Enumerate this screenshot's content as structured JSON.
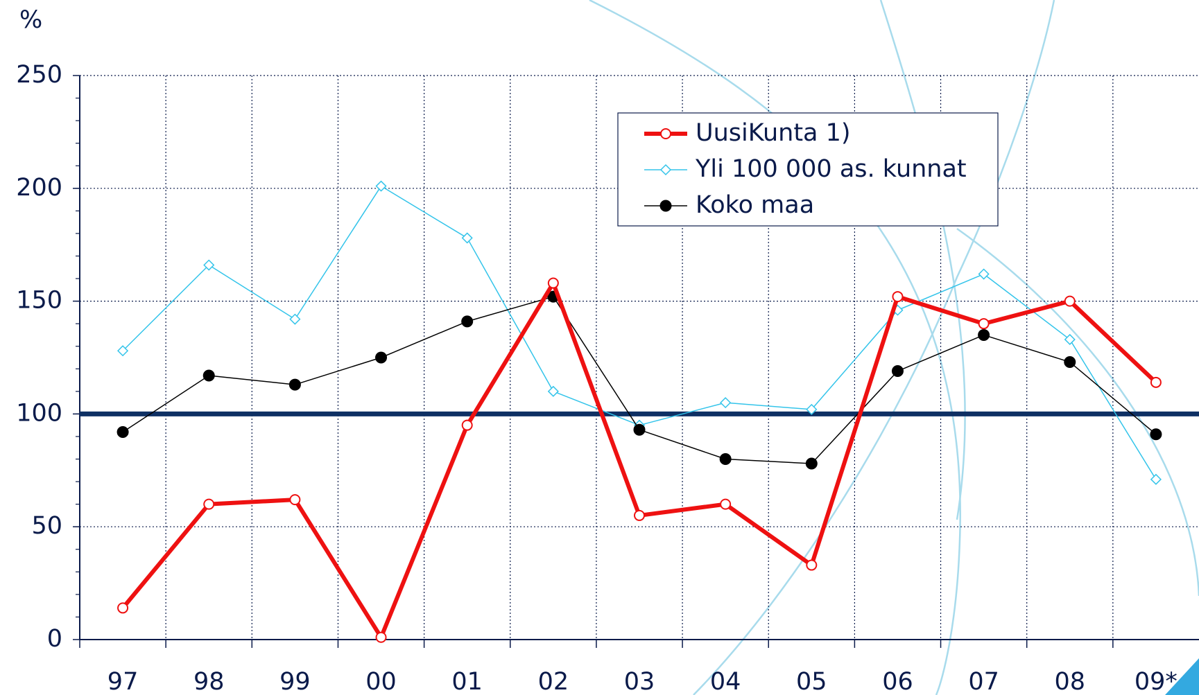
{
  "chart_data": {
    "type": "line",
    "y_label": "%",
    "categories": [
      "97",
      "98",
      "99",
      "00",
      "01",
      "02",
      "03",
      "04",
      "05",
      "06",
      "07",
      "08",
      "09*"
    ],
    "series": [
      {
        "name": "UusiKunta 1)",
        "color": "#ee1111",
        "values": [
          14,
          60,
          62,
          1,
          95,
          158,
          55,
          60,
          33,
          152,
          140,
          150,
          114
        ]
      },
      {
        "name": "Yli 100 000 as. kunnat",
        "color": "#33c4ea",
        "values": [
          128,
          166,
          142,
          201,
          178,
          110,
          95,
          105,
          102,
          146,
          162,
          133,
          71
        ]
      },
      {
        "name": "Koko maa",
        "color": "#000000",
        "values": [
          92,
          117,
          113,
          125,
          141,
          152,
          93,
          80,
          78,
          119,
          135,
          123,
          91
        ]
      }
    ],
    "reference_line": 100,
    "ylim": [
      0,
      250
    ],
    "yticks": [
      0,
      50,
      100,
      150,
      200,
      250
    ],
    "grid": true
  }
}
